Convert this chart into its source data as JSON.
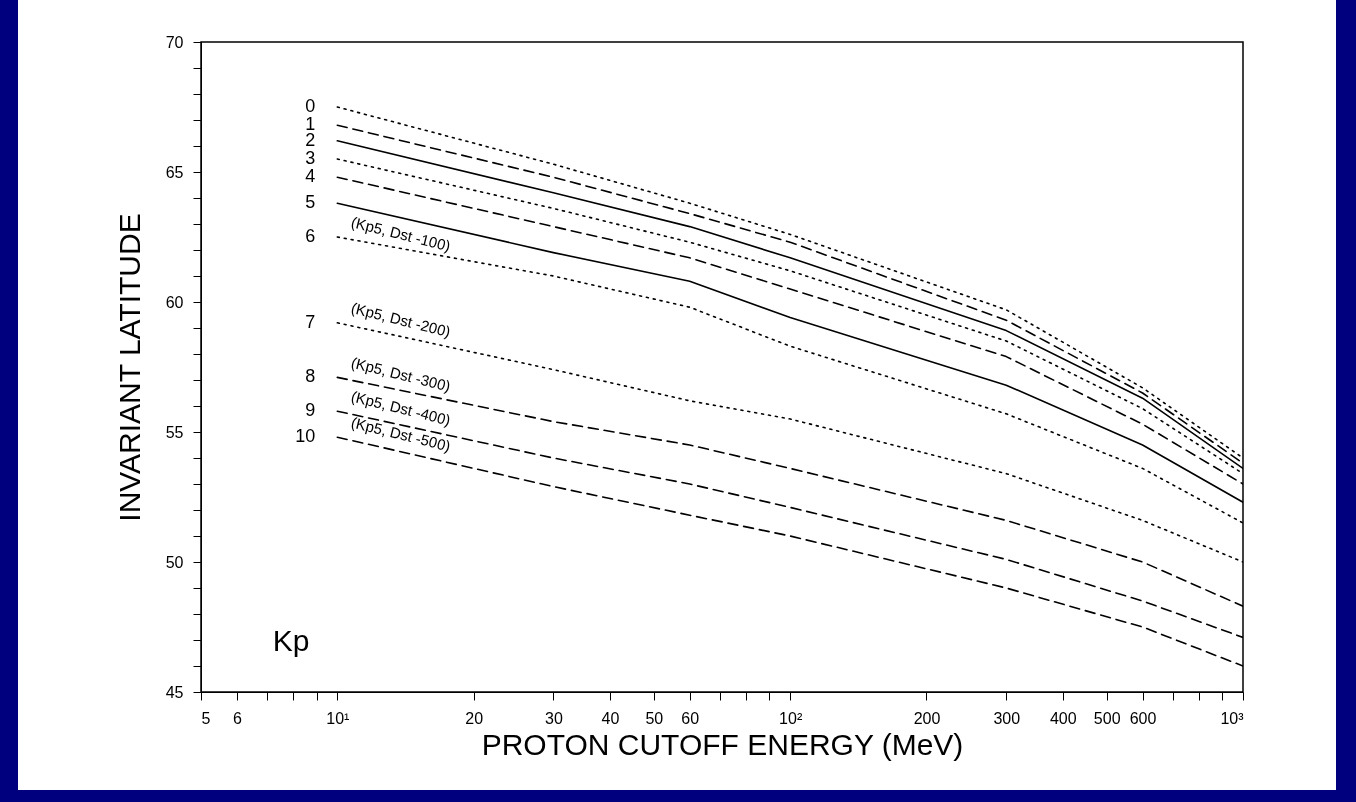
{
  "chart_data": {
    "type": "line",
    "xlabel": "PROTON CUTOFF ENERGY (MeV)",
    "ylabel": "INVARIANT LATITUDE",
    "legend_title": "Kp",
    "log": "x",
    "x": [
      10,
      30,
      60,
      100,
      300,
      600,
      1000
    ],
    "xlim": [
      5,
      1000
    ],
    "xticks": [
      5,
      6,
      {
        "value": 7,
        "label": null
      },
      {
        "value": 8,
        "label": null
      },
      {
        "value": 9,
        "label": null
      },
      {
        "value": 10,
        "label": "10¹"
      },
      20.0,
      30.0,
      40.0,
      50.0,
      60.0,
      {
        "value": 70,
        "label": null
      },
      {
        "value": 80,
        "label": null
      },
      {
        "value": 90,
        "label": null
      },
      {
        "value": 100,
        "label": "10²"
      },
      200.0,
      300.0,
      400.0,
      500.0,
      600.0,
      {
        "value": 700,
        "label": null
      },
      {
        "value": 800,
        "label": null
      },
      {
        "value": 900,
        "label": null
      },
      {
        "value": 1000,
        "label": "10³"
      }
    ],
    "ylim": [
      45,
      70
    ],
    "yticks": [
      45,
      {
        "value": 46,
        "label": null
      },
      {
        "value": 47,
        "label": null
      },
      {
        "value": 48,
        "label": null
      },
      {
        "value": 49,
        "label": null
      },
      50,
      {
        "value": 51,
        "label": null
      },
      {
        "value": 52,
        "label": null
      },
      {
        "value": 53,
        "label": null
      },
      {
        "value": 54,
        "label": null
      },
      55,
      {
        "value": 56,
        "label": null
      },
      {
        "value": 57,
        "label": null
      },
      {
        "value": 58,
        "label": null
      },
      {
        "value": 59,
        "label": null
      },
      60,
      {
        "value": 61,
        "label": null
      },
      {
        "value": 62,
        "label": null
      },
      {
        "value": 63,
        "label": null
      },
      {
        "value": 64,
        "label": null
      },
      65,
      {
        "value": 66,
        "label": null
      },
      {
        "value": 67,
        "label": null
      },
      {
        "value": 68,
        "label": null
      },
      {
        "value": 69,
        "label": null
      },
      70
    ],
    "grid": false,
    "legend": false,
    "series": [
      {
        "name": "0",
        "color": "#000000",
        "line_style": "dotted",
        "values": [
          67.5,
          65.3,
          63.8,
          62.6,
          59.7,
          56.7,
          54.0
        ]
      },
      {
        "name": "1",
        "color": "#000000",
        "line_style": "dashed",
        "values": [
          66.8,
          64.8,
          63.4,
          62.3,
          59.3,
          56.5,
          53.8
        ]
      },
      {
        "name": "2",
        "color": "#000000",
        "line_style": "solid",
        "values": [
          66.2,
          64.2,
          62.9,
          61.7,
          58.9,
          56.3,
          53.6
        ]
      },
      {
        "name": "3",
        "color": "#000000",
        "line_style": "dotted",
        "values": [
          65.5,
          63.6,
          62.3,
          61.2,
          58.5,
          55.9,
          53.4
        ]
      },
      {
        "name": "4",
        "color": "#000000",
        "line_style": "dashed",
        "values": [
          64.8,
          62.9,
          61.7,
          60.5,
          57.9,
          55.3,
          53.0
        ]
      },
      {
        "name": "5",
        "color": "#000000",
        "line_style": "solid",
        "values": [
          63.8,
          61.9,
          60.8,
          59.4,
          56.8,
          54.5,
          52.3
        ]
      },
      {
        "name": "6",
        "color": "#000000",
        "line_style": "dotted",
        "values": [
          62.5,
          61.0,
          59.8,
          58.3,
          55.7,
          53.6,
          51.5
        ]
      },
      {
        "name": "7",
        "color": "#000000",
        "line_style": "dotted",
        "values": [
          59.2,
          57.4,
          56.2,
          55.5,
          53.4,
          51.6,
          50.0
        ]
      },
      {
        "name": "8",
        "color": "#000000",
        "line_style": "dashed",
        "values": [
          57.1,
          55.4,
          54.5,
          53.6,
          51.6,
          50.0,
          48.3
        ]
      },
      {
        "name": "9",
        "color": "#000000",
        "line_style": "dashed",
        "values": [
          55.8,
          54.0,
          53.0,
          52.1,
          50.1,
          48.5,
          47.1
        ]
      },
      {
        "name": "10",
        "color": "#000000",
        "line_style": "dashed",
        "values": [
          54.8,
          52.9,
          51.8,
          51.0,
          49.0,
          47.5,
          46.0
        ]
      }
    ],
    "annotations": [
      "(Kp5,  Dst -100)",
      "(Kp5,  Dst -200)",
      "(Kp5,  Dst -300)",
      "(Kp5,  Dst -400)",
      "(Kp5,  Dst -500)"
    ]
  }
}
